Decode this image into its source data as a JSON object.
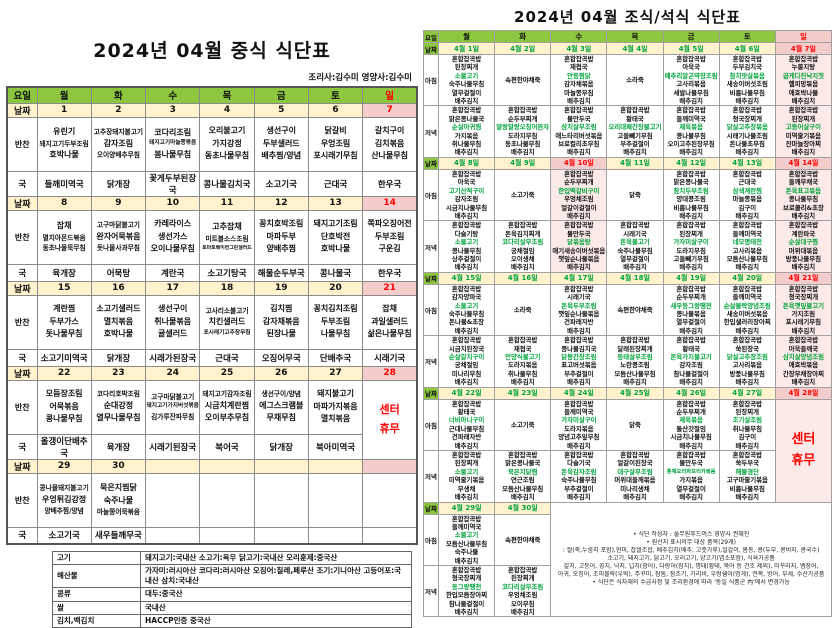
{
  "colors": {
    "header_green": "#8dc63f",
    "date_cream": "#fff2cc",
    "sunday_pink": "#f4cccc",
    "column_tint": "#fbeae7",
    "green_text": "#00a33c",
    "red_text": "#ff0000"
  },
  "lunch": {
    "title": "2024년 04월 중식 식단표",
    "staff": "조리사:김수미   영양사:김수미",
    "row_labels": {
      "day": "요일",
      "date": "날짜",
      "banchan": "반찬",
      "soup": "국"
    },
    "days": [
      "월",
      "화",
      "수",
      "목",
      "금",
      "토",
      "일"
    ],
    "closure_lines": [
      "센터",
      "휴무"
    ],
    "weeks": [
      {
        "dates": [
          "1",
          "2",
          "3",
          "4",
          "5",
          "6",
          "7"
        ],
        "banchan": [
          [
            "유린기",
            "돼지고기두부조림",
            "호박나물"
          ],
          [
            "고추장돼지불고기",
            "감자조림",
            "오이양배추무침"
          ],
          [
            "코다리조림",
            "돼지고기마늘쫑볶음",
            "봄나물무침"
          ],
          [
            "오리불고기",
            "가지강정",
            "동초나물무침"
          ],
          [
            "생선구이",
            "두부샐러드",
            "배추찜/양념"
          ],
          [
            "닭갈비",
            "우엉조림",
            "포시래기무침"
          ],
          [
            "갈치구이",
            "김치볶음",
            "산나물무침"
          ]
        ],
        "soup": [
          "들깨미역국",
          "닭개장",
          "꽃게두부된장국",
          "콩나물김치국",
          "소고기국",
          "근대국",
          "한우국"
        ]
      },
      {
        "dates": [
          "8",
          "9",
          "10",
          "11",
          "12",
          "13",
          "14"
        ],
        "banchan": [
          [
            "잡채",
            "멸치아몬드볶음",
            "동초나물묵무침"
          ],
          [
            "고구마닭불고기",
            "완자어묵볶음",
            "돗나물사과무침"
          ],
          [
            "카레라이스",
            "생선가스",
            "오이나물무침"
          ],
          [
            "고추잡채",
            "미트볼소스조림",
            "토마토베이컨그린샐러드"
          ],
          [
            "꽁치호박조림",
            "마파두부",
            "양배추찜"
          ],
          [
            "돼지고기조림",
            "단호박전",
            "호박나물"
          ],
          [
            "쪽파오징어전",
            "두부조림",
            "구운김"
          ]
        ],
        "soup": [
          "육개장",
          "어묵탕",
          "계란국",
          "소고기탕국",
          "해물순두부국",
          "콩나물국",
          "한우국"
        ]
      },
      {
        "dates": [
          "15",
          "16",
          "17",
          "18",
          "19",
          "20",
          "21"
        ],
        "banchan": [
          [
            "계란찜",
            "두부가스",
            "돗나물무침"
          ],
          [
            "소고기샐러드",
            "멸치볶음",
            "호박나물"
          ],
          [
            "생선구이",
            "취나물볶음",
            "귤샐러드"
          ],
          [
            "고사리소불고기",
            "치킨샐러드",
            "포시래기고추장무침"
          ],
          [
            "김치찜",
            "감자채볶음",
            "된장나물"
          ],
          [
            "꽁치김치조림",
            "두부조림",
            "나물무침"
          ],
          [
            "잡채",
            "과일샐러드",
            "삶은나물무침"
          ]
        ],
        "soup": [
          "소고기미역국",
          "닭개장",
          "시래가된장국",
          "근대국",
          "오징어무국",
          "단배추국",
          "시래기국"
        ]
      },
      {
        "dates": [
          "22",
          "23",
          "24",
          "25",
          "26",
          "27",
          "28"
        ],
        "banchan": [
          [
            "모듬장조림",
            "어묵볶음",
            "콩나물무침"
          ],
          [
            "코다리호박조림",
            "순대강정",
            "열무나물무침"
          ],
          [
            "고구마닭불고기",
            "돼지고기가지버섯볶음",
            "김가루잔파무침"
          ],
          [
            "돼지고기감자조림",
            "시금치계란찜",
            "오이부추무침"
          ],
          [
            "생선구이/양념",
            "에그스크램블",
            "무채무침"
          ],
          [
            "돼지불고기",
            "마파가지볶음",
            "멸치볶음"
          ],
          null
        ],
        "soup": [
          "올갱이단배추국",
          "육개장",
          "시래기된장국",
          "북어국",
          "닭개장",
          "북아미역국",
          null
        ]
      },
      {
        "dates": [
          "29",
          "30",
          "",
          "",
          "",
          "",
          ""
        ],
        "banchan": [
          [
            "콩나물돼지불고기",
            "우엉튀김강정",
            "양배추찜/양념"
          ],
          [
            "묵은지찜닭",
            "숙주나물",
            "마늘쫑어묵볶음"
          ],
          [],
          [],
          [],
          [],
          []
        ],
        "soup": [
          "소고기국",
          "새우들깨무국",
          "",
          "",
          "",
          "",
          ""
        ]
      }
    ],
    "origin": [
      [
        "고기",
        "돼지고기:국내산 소고기:육우 닭고기:국내산 오리훈제:중국산"
      ],
      [
        "해산물",
        "가자미:러시아산 코다리:러시아산 오징어:칠레,페루산 조기:기니아산 고등어포:국내산 삼치:국내산"
      ],
      [
        "콩류",
        "대두:중국산"
      ],
      [
        "쌀",
        "국내산"
      ],
      [
        "김치,백김치",
        "HACCP인증 중국산"
      ]
    ]
  },
  "bd": {
    "title": "2024년 04월 조식/석식 식단표",
    "row_labels": {
      "day": "요일",
      "date": "날짜",
      "breakfast": "아침",
      "dinner": "저녁"
    },
    "days": [
      "월",
      "화",
      "수",
      "목",
      "금",
      "토",
      "일"
    ],
    "closure_lines": [
      "센터",
      "휴무"
    ],
    "weeks": [
      {
        "dates": [
          "4월 1일",
          "4월 2일",
          "4월 3일",
          "4월 4일",
          "4월 5일",
          "4월 6일",
          "4월 7일"
        ],
        "red_cols": [
          6
        ],
        "tint_cols": [
          6
        ],
        "breakfast": [
          [
            "혼합잡곡밥",
            "된장찌개",
            "소불고기",
            "숙주나물무침",
            "열무겉절이",
            "배추김치"
          ],
          [
            "속편한야채죽"
          ],
          [
            "혼합잡곡밥",
            "재첩국",
            "안동찜닭",
            "감자채볶음",
            "마늘쫑무침",
            "배추김치"
          ],
          [
            "소라죽"
          ],
          [
            "혼합잡곡밥",
            "아욱국",
            "메추리알곤약장조림",
            "고사리볶음",
            "세발나물무침",
            "배추김치"
          ],
          [
            "혼합잡곡밥",
            "두부김치국",
            "참치맛살볶음",
            "새송이버섯조림",
            "비름나물무침",
            "배추김치"
          ],
          [
            "혼합잡곡밥",
            "누룽지탕",
            "곱게다진낙지젓",
            "햄피망볶음",
            "애호박나물",
            "배추김치"
          ]
        ],
        "dinner": [
          [
            "혼합잡곡밥",
            "맑은콩나물국",
            "순살아귀찜",
            "가지볶음",
            "취나물무침",
            "배추김치"
          ],
          [
            "혼합잡곡밥",
            "순두부찌개",
            "말랑말랑오징어완자",
            "도라지무침",
            "동초나물무침",
            "배추김치"
          ],
          [
            "혼합잡곡밥",
            "물만두국",
            "삼치살무조림",
            "애느타리버섯볶음",
            "브로컬리초무침",
            "배추김치"
          ],
          [
            "혼합잡곡밥",
            "황태국",
            "오리대패간장불고기",
            "고들빼기무침",
            "부추겉절이",
            "배추김치"
          ],
          [
            "혼합잡곡밥",
            "들깨미역국",
            "제육볶음",
            "콩나물무침",
            "오이고추된장무침",
            "배추김치"
          ],
          [
            "혼합잡곡밥",
            "청국장찌개",
            "닭살고추장볶음",
            "시래기나물조림",
            "돈나물초무침",
            "배추김치"
          ],
          [
            "혼합잡곡밥",
            "된장찌개",
            "고등어살구이",
            "미역줄기볶음",
            "잔마늘장아찌",
            "배추김치"
          ]
        ]
      },
      {
        "dates": [
          "4월 8일",
          "4월 9일",
          "4월 10일",
          "4월 11일",
          "4월 12일",
          "4월 13일",
          "4월 14일"
        ],
        "red_cols": [
          2,
          6
        ],
        "tint_cols": [
          2,
          6
        ],
        "breakfast": [
          [
            "혼합잡곡밥",
            "아욱국",
            "고기산적구이",
            "감자조림",
            "시금치나물무침",
            "배추김치"
          ],
          [
            "소고기죽"
          ],
          [
            "혼합잡곡밥",
            "순두부찌개",
            "한입떡갈비구이",
            "우엉채조림",
            "얼갈이겉절이",
            "배추김치"
          ],
          [
            "닭죽"
          ],
          [
            "혼합잡곡밥",
            "맑은콩나물국",
            "참치두부조림",
            "양대콩조림",
            "비름나물무침",
            "배추김치"
          ],
          [
            "혼합잡곡밥",
            "근대국",
            "삼색계란찜",
            "마늘쫑볶음",
            "김구이",
            "배추김치"
          ],
          [
            "혼합잡곡밥",
            "들깨무채국",
            "돈육표고볶음",
            "콩나물무침",
            "브로콜리&초장",
            "배추김치"
          ]
        ],
        "dinner": [
          [
            "혼합잡곡밥",
            "다슬기탕",
            "소불고기",
            "콩나물무침",
            "상추겉절이",
            "배추김치"
          ],
          [
            "혼합잡곡밥",
            "돈육김치찌개",
            "코다리살무조림",
            "궁채절임",
            "오이생채",
            "배추김치"
          ],
          [
            "혼합잡곡밥",
            "물만두국",
            "닭볶음탕",
            "애기새송이버섯볶음",
            "깻잎순나물볶음",
            "배추김치"
          ],
          [
            "혼합잡곡밥",
            "시래기국",
            "돈육불고기",
            "숙주나물무침",
            "열무겉절이",
            "배추김치"
          ],
          [
            "혼합잡곡밥",
            "된장찌개",
            "가자미살구이",
            "도라지무침",
            "고들빼기무침",
            "배추김치"
          ],
          [
            "혼합잡곡밥",
            "들깨미역국",
            "네모명태전",
            "고사리볶음",
            "모듬산나물무침",
            "배추김치"
          ],
          [
            "혼합잡곡밥",
            "계란파국",
            "순살대구찜",
            "머위대볶음",
            "방풍나물무침",
            "배추김치"
          ]
        ]
      },
      {
        "dates": [
          "4월 15일",
          "4월 16일",
          "4월 17일",
          "4월 18일",
          "4월 19일",
          "4월 20일",
          "4월 21일"
        ],
        "red_cols": [
          6
        ],
        "tint_cols": [
          6
        ],
        "breakfast": [
          [
            "혼합잡곡밥",
            "감자양파국",
            "소불고기",
            "숙주나물무침",
            "돈나물&초장",
            "배추김치"
          ],
          [
            "소라죽"
          ],
          [
            "혼합잡곡밥",
            "시래기국",
            "돈육두부조림",
            "깻잎순나물볶음",
            "건파래자반",
            "배추김치"
          ],
          [
            "속편한야채죽"
          ],
          [
            "혼합잡곡밥",
            "순두부찌개",
            "새우동그랑땡전",
            "콩나물볶음",
            "열무겉절이",
            "배추김치"
          ],
          [
            "혼합잡곡밥",
            "들깨미역국",
            "순살볼락양념조림",
            "새송이버섯볶음",
            "한입샐러리장아찌",
            "배추김치"
          ],
          [
            "혼합잡곡밥",
            "청국장찌개",
            "돈육깻잎불고기",
            "가지조림",
            "포시래기무침",
            "배추김치"
          ]
        ],
        "dinner": [
          [
            "혼합잡곡밥",
            "시금치된장국",
            "순살갈치구이",
            "궁채절임",
            "미나리무침",
            "배추김치"
          ],
          [
            "혼합잡곡밥",
            "재첩국",
            "언양식불고기",
            "도라지볶음",
            "취나물무침",
            "배추김치"
          ],
          [
            "혼합잡곡밥",
            "콩나물김치국",
            "닭봉간장조림",
            "표고버섯볶음",
            "부추겉절이",
            "배추김치"
          ],
          [
            "혼합잡곡밥",
            "달래된장찌개",
            "동태살무조림",
            "노란콩조림",
            "모듬산나물무침",
            "배추김치"
          ],
          [
            "혼합잡곡밥",
            "황태국",
            "돈육가지불고기",
            "감자조림",
            "참나물겉절이",
            "배추김치"
          ],
          [
            "혼합잡곡밥",
            "쑥된장국",
            "닭살고추장조림",
            "고사리볶음",
            "방풍나물무침",
            "배추김치"
          ],
          [
            "혼합잡곡밥",
            "아욱들깨국",
            "삼치살양념조림",
            "애호박볶음",
            "간장무채장아찌",
            "배추김치"
          ]
        ]
      },
      {
        "dates": [
          "4월 22일",
          "4월 23일",
          "4월 24일",
          "4월 25일",
          "4월 26일",
          "4월 27일",
          "4월 28일"
        ],
        "red_cols": [
          6
        ],
        "tint_cols": [
          6
        ],
        "closure_col": 6,
        "breakfast": [
          [
            "혼합잡곡밥",
            "황태국",
            "너비아니구이",
            "근대나물무침",
            "건파래자반",
            "배추김치"
          ],
          [
            "소고기죽"
          ],
          [
            "혼합잡곡밥",
            "들깨미역국",
            "가자미살구이",
            "도라지볶음",
            "양념고추잎무침",
            "배추김치"
          ],
          [
            "닭죽"
          ],
          [
            "혼합잡곡밥",
            "순두부찌개",
            "제육볶음",
            "돌산갓절임",
            "시금치나물무침",
            "배추김치"
          ],
          [
            "혼합잡곡밥",
            "된장찌개",
            "조기살조림",
            "취나물무침",
            "김구이",
            "배추김치"
          ],
          null
        ],
        "dinner": [
          [
            "혼합잡곡밥",
            "된장찌개",
            "소불고기",
            "미역줄기볶음",
            "무생채",
            "배추김치"
          ],
          [
            "혼합잡곡밥",
            "맑은콩나물국",
            "묵은지닭찜",
            "연근조림",
            "모듬산나물무침",
            "배추김치"
          ],
          [
            "혼합잡곡밥",
            "다슬기국",
            "돈육감자조림",
            "숙주나물무침",
            "부추겉절이",
            "배추김치"
          ],
          [
            "혼합잡곡밥",
            "얼갈이된장국",
            "대구살무조림",
            "머위대들깨볶음",
            "미나리생채",
            "배추김치"
          ],
          [
            "혼합잡곡밥",
            "물만두국",
            "훈제오리파프리카볶음",
            "가지볶음",
            "열무겉절이",
            "배추김치"
          ],
          [
            "혼합잡곡밥",
            "쑥두부국",
            "해물경단",
            "고구마줄기볶음",
            "비름나물무침",
            "배추김치"
          ],
          null
        ]
      },
      {
        "dates": [
          "4월 29일",
          "4월 30일"
        ],
        "red_cols": [],
        "tint_cols": [],
        "notes_area": true,
        "breakfast": [
          [
            "혼합잡곡밥",
            "들깨미역국",
            "소불고기",
            "모듬산나물무침",
            "숙주나물",
            "배추김치"
          ],
          [
            "속편한야채죽"
          ]
        ],
        "dinner": [
          [
            "혼합잡곡밥",
            "청국장찌개",
            "동그랑땡전",
            "한입모듬장아찌",
            "참나물겉절이",
            "배추김치"
          ],
          [
            "혼합잡곡밥",
            "된장찌개",
            "코다리살무조림",
            "우엉채조림",
            "오이무침",
            "배추김치"
          ]
        ]
      }
    ],
    "notes": [
      "• 식단 작성자 : 풀무원푸드머스 영양사 권혜진",
      "• 원산지 표시의무 대상 품목(29개)",
      "   : 쌀(죽,누룽지 포함),현미, 찹쌀조합, 배추김치(배추, 고춧가루),얼갈이, 봄동, 콩(두부, 콩비지, 콩국수)",
      "      소고기, 돼지고기, 닭고기, 오리고기, 양고기(염소포함), 식육가공품",
      "      갈치, 고등어, 꽁치, 낙지, 넙치(광어), 다랑어(참치), 명태(황태, 북어 등 건조 제외), 미꾸라지, 뱀장어,",
      "      아귀, 오징어, 조피볼락(우럭), 주꾸미, 참돔, 참조기, 가리비, 우렁쉥이(멍게), 전복, 방어, 부세, 수산가공품",
      "• 식단은 식자재의 수급사정 및 조리환경에 따라 '동일 식품군 內'에서 변경가능"
    ]
  }
}
